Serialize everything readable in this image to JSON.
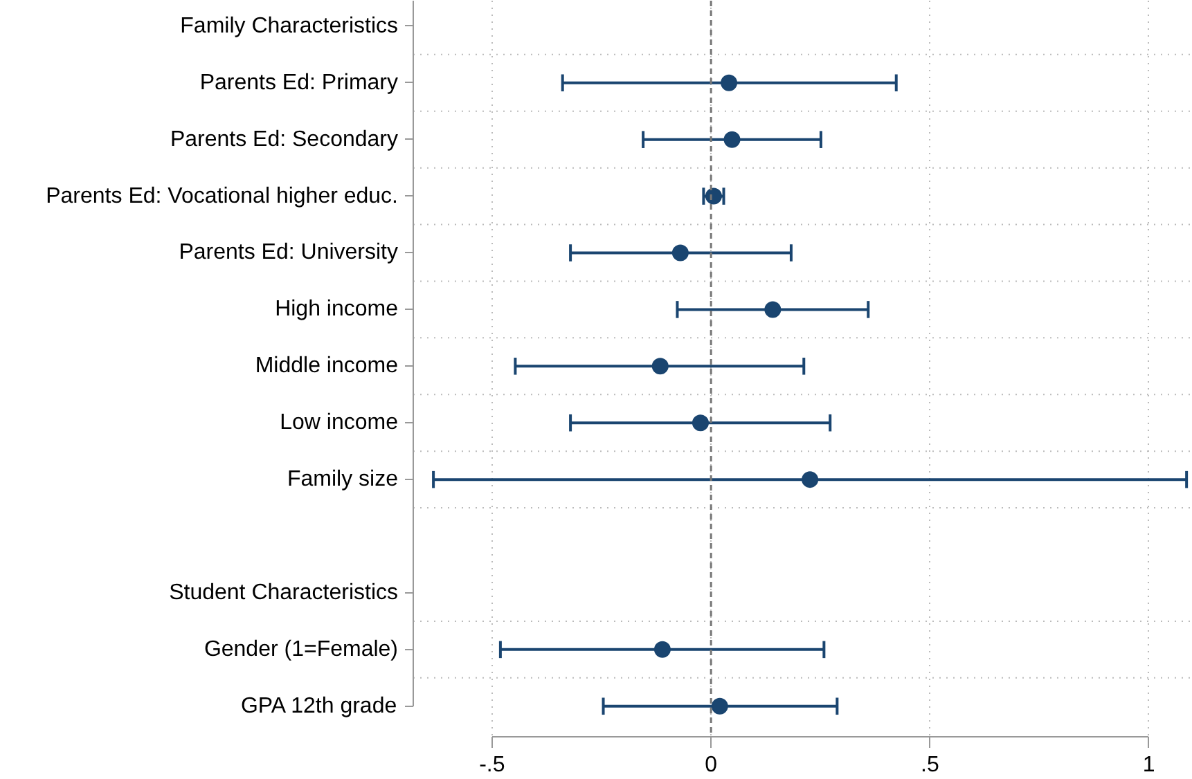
{
  "chart_data": {
    "type": "scatter",
    "orientation": "horizontal",
    "categories": [
      "Family Characteristics",
      "Parents Ed: Primary",
      "Parents Ed: Secondary",
      "Parents Ed: Vocational higher educ.",
      "Parents Ed: University",
      "High income",
      "Middle income",
      "Low income",
      "Family size",
      null,
      "Student Characteristics",
      "Gender (1=Female)",
      "GPA 12th grade"
    ],
    "series": [
      {
        "color": "#1a4570",
        "values": [
          null,
          0.041,
          0.048,
          0.006,
          -0.07,
          0.141,
          -0.116,
          -0.024,
          0.226,
          null,
          null,
          -0.111,
          0.02
        ],
        "errors": [
          null,
          [
            -0.339,
            0.423
          ],
          [
            -0.155,
            0.251
          ],
          [
            -0.017,
            0.029
          ],
          [
            -0.321,
            0.183
          ],
          [
            -0.077,
            0.359
          ],
          [
            -0.447,
            0.212
          ],
          [
            -0.321,
            0.272
          ],
          [
            -0.634,
            1.086
          ],
          null,
          null,
          [
            -0.481,
            0.258
          ],
          [
            -0.246,
            0.288
          ]
        ]
      }
    ],
    "xlim": [
      -0.68,
      1.1
    ],
    "xticks": [
      {
        "value": -0.5,
        "label": "-.5"
      },
      0,
      {
        "value": 0.5,
        "label": ".5"
      },
      1
    ],
    "ref_lines": [
      {
        "axis": "x",
        "value": 0,
        "line_style": "dashed",
        "color": "#777777"
      }
    ],
    "grid": true,
    "marker": "circle"
  }
}
